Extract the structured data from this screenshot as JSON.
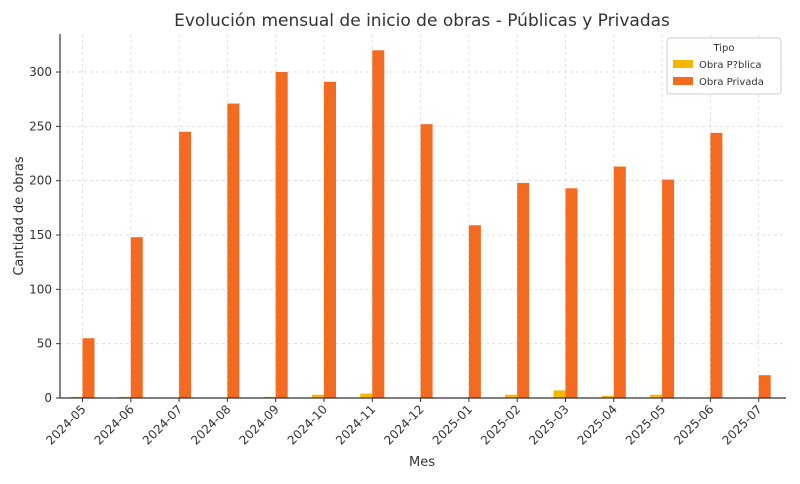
{
  "chart_data": {
    "type": "bar",
    "title": "Evolución mensual de inicio de obras - Públicas y Privadas",
    "xlabel": "Mes",
    "ylabel": "Cantidad de obras",
    "ylim": [
      0,
      335
    ],
    "yticks": [
      0,
      50,
      100,
      150,
      200,
      250,
      300
    ],
    "grid": true,
    "legend": {
      "title": "Tipo",
      "placement": "top-right"
    },
    "categories": [
      "2024-05",
      "2024-06",
      "2024-07",
      "2024-08",
      "2024-09",
      "2024-10",
      "2024-11",
      "2024-12",
      "2025-01",
      "2025-02",
      "2025-03",
      "2025-04",
      "2025-05",
      "2025-06",
      "2025-07"
    ],
    "series": [
      {
        "name": "Obra P?blica",
        "color": "#f5b800",
        "values": [
          1,
          1,
          0,
          0,
          1,
          3,
          4,
          0,
          0,
          3,
          7,
          2,
          3,
          0,
          0
        ]
      },
      {
        "name": "Obra Privada",
        "color": "#f26b21",
        "values": [
          55,
          148,
          245,
          271,
          300,
          291,
          320,
          252,
          159,
          198,
          193,
          213,
          201,
          244,
          21
        ]
      }
    ]
  }
}
